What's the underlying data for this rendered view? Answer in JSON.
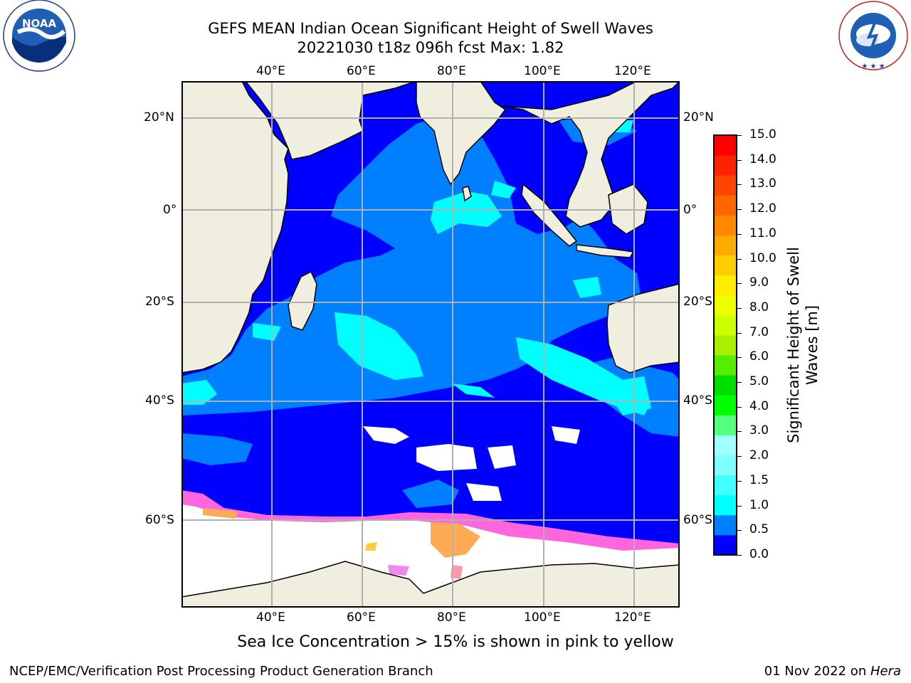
{
  "title": {
    "line1": "GEFS MEAN Indian Ocean Significant Height of Swell Waves",
    "line2": "20221030 t18z 096h fcst   Max: 1.82"
  },
  "map": {
    "lon_ticks": [
      "40°E",
      "60°E",
      "80°E",
      "100°E",
      "120°E"
    ],
    "lat_ticks": [
      "20°N",
      "0°",
      "20°S",
      "40°S",
      "60°S"
    ],
    "extent": {
      "lon": [
        20,
        130
      ],
      "lat": [
        -72,
        28
      ]
    },
    "colors": {
      "land": "#efeedf",
      "ocean_deep": "#0000ff",
      "ice": "#ffffff",
      "grid": "#b0b0b0"
    }
  },
  "colorbar": {
    "label": "Significant Height of Swell Waves [m]",
    "ticks": [
      "15.0",
      "14.0",
      "13.0",
      "12.0",
      "11.0",
      "10.0",
      "9.0",
      "8.0",
      "7.0",
      "6.0",
      "5.0",
      "4.0",
      "3.0",
      "2.0",
      "1.5",
      "1.0",
      "0.5",
      "0.0"
    ],
    "colors": [
      "#0000ff",
      "#0080ff",
      "#00ffff",
      "#40ffff",
      "#80ffff",
      "#a0ffff",
      "#55ff80",
      "#00ff00",
      "#00dd00",
      "#55ee00",
      "#aaee00",
      "#ccff00",
      "#eeff00",
      "#ffee00",
      "#ffcc00",
      "#ffaa00",
      "#ff8800",
      "#ff6600",
      "#ff4400",
      "#ff2200",
      "#ff0000"
    ]
  },
  "caption": "Sea Ice Concentration > 15% is shown in pink to yellow",
  "footer": {
    "left": "NCEP/EMC/Verification Post Processing Product Generation Branch",
    "right_prefix": "01 Nov 2022 on ",
    "right_host": "Hera"
  },
  "logos": {
    "noaa": "NOAA",
    "nws_ring": "NATIONAL WEATHER SERVICE",
    "noaa_ring": "NATIONAL OCEANIC AND ATMOSPHERIC ADMINISTRATION · U.S. DEPARTMENT OF COMMERCE"
  }
}
